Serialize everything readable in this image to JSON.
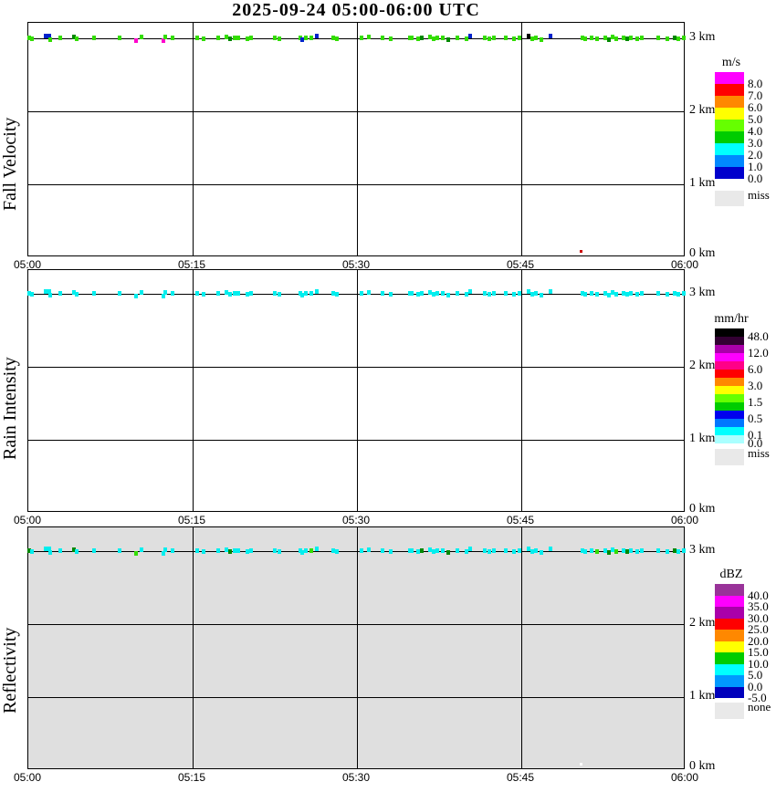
{
  "title": "2025-09-24  05:00-06:00 UTC",
  "mark_colors": {
    "g": "#33dd00",
    "G": "#008800",
    "b": "#0022cc",
    "m": "#ff00cc",
    "k": "#000000",
    "c": "#00eeee",
    "r": "#cc0000",
    "w": "#ffffff"
  },
  "chart_data": [
    {
      "type": "scatter",
      "panel": "fall-velocity",
      "ylabel": "Fall Velocity",
      "unit": "m/s",
      "x_ticks": [
        "05:00",
        "05:15",
        "05:30",
        "05:45",
        "06:00"
      ],
      "y_ticks": [
        "3 km",
        "2 km",
        "1 km",
        "0 km"
      ],
      "x_range_minutes": [
        0,
        60
      ],
      "y_range_km": [
        0,
        3.3
      ],
      "grid": true,
      "background": "#ffffff",
      "legend": {
        "title": "m/s",
        "bands": [
          "#ff00ff",
          "#ff0000",
          "#ff8800",
          "#ffff00",
          "#66ff00",
          "#00cc00",
          "#00ffff",
          "#0088ff",
          "#0000cc"
        ],
        "labels": [
          "8.0",
          "7.0",
          "6.0",
          "5.0",
          "4.0",
          "3.0",
          "2.0",
          "1.0",
          "0.0"
        ],
        "label_boundaries": [
          1,
          2,
          3,
          4,
          5,
          6,
          7,
          8,
          9
        ],
        "extra_label": "miss",
        "extra_color": "#e9e9e9"
      },
      "marks_altitude_km": 3.05,
      "marks": [
        [
          0.1,
          "g",
          0
        ],
        [
          0.3,
          "g",
          1
        ],
        [
          1.6,
          "b",
          -2
        ],
        [
          1.9,
          "b",
          -2
        ],
        [
          2.0,
          "g",
          2
        ],
        [
          2.9,
          "g",
          0
        ],
        [
          4.2,
          "G",
          -1
        ],
        [
          4.4,
          "g",
          1
        ],
        [
          6.0,
          "g",
          0
        ],
        [
          8.3,
          "g",
          0
        ],
        [
          9.8,
          "m",
          3
        ],
        [
          10.3,
          "g",
          -1
        ],
        [
          12.3,
          "m",
          3
        ],
        [
          12.5,
          "g",
          -1
        ],
        [
          13.2,
          "g",
          0
        ],
        [
          15.4,
          "g",
          0
        ],
        [
          16.0,
          "g",
          1
        ],
        [
          17.3,
          "g",
          0
        ],
        [
          18.1,
          "g",
          -1
        ],
        [
          18.4,
          "G",
          1
        ],
        [
          18.8,
          "g",
          0
        ],
        [
          19.2,
          "g",
          0
        ],
        [
          20.0,
          "g",
          1
        ],
        [
          20.3,
          "g",
          0
        ],
        [
          22.5,
          "g",
          0
        ],
        [
          22.9,
          "g",
          1
        ],
        [
          24.8,
          "g",
          0
        ],
        [
          25.0,
          "b",
          2
        ],
        [
          25.3,
          "g",
          0
        ],
        [
          25.8,
          "g",
          0
        ],
        [
          26.3,
          "b",
          -2
        ],
        [
          27.8,
          "g",
          0
        ],
        [
          28.2,
          "g",
          1
        ],
        [
          30.4,
          "g",
          0
        ],
        [
          31.1,
          "g",
          -1
        ],
        [
          32.3,
          "g",
          0
        ],
        [
          33.1,
          "g",
          1
        ],
        [
          34.8,
          "g",
          0
        ],
        [
          35.0,
          "g",
          0
        ],
        [
          35.6,
          "g",
          1
        ],
        [
          35.9,
          "G",
          0
        ],
        [
          36.7,
          "g",
          -1
        ],
        [
          37.0,
          "g",
          1
        ],
        [
          37.3,
          "g",
          0
        ],
        [
          37.8,
          "g",
          0
        ],
        [
          38.3,
          "G",
          2
        ],
        [
          39.2,
          "g",
          0
        ],
        [
          40.0,
          "g",
          1
        ],
        [
          40.3,
          "b",
          -2
        ],
        [
          41.7,
          "g",
          0
        ],
        [
          42.1,
          "g",
          1
        ],
        [
          42.5,
          "g",
          0
        ],
        [
          43.6,
          "g",
          0
        ],
        [
          44.3,
          "g",
          1
        ],
        [
          44.8,
          "g",
          0
        ],
        [
          45.7,
          "k",
          -2
        ],
        [
          46.0,
          "g",
          1
        ],
        [
          46.3,
          "g",
          0
        ],
        [
          46.8,
          "g",
          2
        ],
        [
          47.7,
          "b",
          -2
        ],
        [
          50.6,
          "g",
          0
        ],
        [
          50.8,
          "g",
          1
        ],
        [
          51.4,
          "g",
          0
        ],
        [
          51.9,
          "g",
          1
        ],
        [
          52.7,
          "g",
          0
        ],
        [
          53.0,
          "G",
          2
        ],
        [
          53.3,
          "g",
          -1
        ],
        [
          53.7,
          "g",
          1
        ],
        [
          54.3,
          "g",
          0
        ],
        [
          54.7,
          "G",
          1
        ],
        [
          55.0,
          "g",
          0
        ],
        [
          55.6,
          "g",
          1
        ],
        [
          56.0,
          "g",
          0
        ],
        [
          57.5,
          "g",
          0
        ],
        [
          58.3,
          "g",
          1
        ],
        [
          59.0,
          "G",
          0
        ],
        [
          59.3,
          "g",
          1
        ],
        [
          59.8,
          "g",
          0
        ]
      ],
      "extra_points": [
        {
          "x_minutes": 50.4,
          "y_km": 0.07,
          "color": "r"
        }
      ]
    },
    {
      "type": "scatter",
      "panel": "rain-intensity",
      "ylabel": "Rain Intensity",
      "unit": "mm/hr",
      "x_ticks": [
        "05:00",
        "05:15",
        "05:30",
        "05:45",
        "06:00"
      ],
      "y_ticks": [
        "3 km",
        "2 km",
        "1 km",
        "0 km"
      ],
      "x_range_minutes": [
        0,
        60
      ],
      "y_range_km": [
        0,
        3.3
      ],
      "grid": true,
      "background": "#ffffff",
      "legend": {
        "title": "mm/hr",
        "bands": [
          "#000000",
          "#330033",
          "#aa00aa",
          "#ff00ff",
          "#ff0088",
          "#ff0000",
          "#ff8800",
          "#ffff00",
          "#66ff00",
          "#00cc00",
          "#0000ee",
          "#0077ff",
          "#00ffff",
          "#aaffff"
        ],
        "labels": [
          "48.0",
          "12.0",
          "6.0",
          "3.0",
          "1.5",
          "0.5",
          "0.1",
          "0.0"
        ],
        "label_boundaries": [
          1,
          3,
          5,
          7,
          9,
          11,
          13,
          14
        ],
        "extra_label": "miss",
        "extra_color": "#e9e9e9"
      },
      "marks_altitude_km": 3.05,
      "marks": [
        [
          0.1,
          "c",
          0
        ],
        [
          0.3,
          "c",
          1
        ],
        [
          1.6,
          "c",
          -2
        ],
        [
          1.9,
          "c",
          -2
        ],
        [
          2.0,
          "c",
          2
        ],
        [
          2.9,
          "c",
          0
        ],
        [
          4.2,
          "c",
          -1
        ],
        [
          4.4,
          "c",
          1
        ],
        [
          6.0,
          "c",
          0
        ],
        [
          8.3,
          "c",
          0
        ],
        [
          9.8,
          "c",
          3
        ],
        [
          10.3,
          "c",
          -1
        ],
        [
          12.3,
          "c",
          3
        ],
        [
          12.5,
          "c",
          -1
        ],
        [
          13.2,
          "c",
          0
        ],
        [
          15.4,
          "c",
          0
        ],
        [
          16.0,
          "c",
          1
        ],
        [
          17.3,
          "c",
          0
        ],
        [
          18.1,
          "c",
          -1
        ],
        [
          18.4,
          "c",
          1
        ],
        [
          18.8,
          "c",
          0
        ],
        [
          19.2,
          "c",
          0
        ],
        [
          20.0,
          "c",
          1
        ],
        [
          20.3,
          "c",
          0
        ],
        [
          22.5,
          "c",
          0
        ],
        [
          22.9,
          "c",
          1
        ],
        [
          24.8,
          "c",
          0
        ],
        [
          25.0,
          "c",
          2
        ],
        [
          25.3,
          "c",
          0
        ],
        [
          25.8,
          "c",
          0
        ],
        [
          26.3,
          "c",
          -2
        ],
        [
          27.8,
          "c",
          0
        ],
        [
          28.2,
          "c",
          1
        ],
        [
          30.4,
          "c",
          0
        ],
        [
          31.1,
          "c",
          -1
        ],
        [
          32.3,
          "c",
          0
        ],
        [
          33.1,
          "c",
          1
        ],
        [
          34.8,
          "c",
          0
        ],
        [
          35.0,
          "c",
          0
        ],
        [
          35.6,
          "c",
          1
        ],
        [
          35.9,
          "c",
          0
        ],
        [
          36.7,
          "c",
          -1
        ],
        [
          37.0,
          "c",
          1
        ],
        [
          37.3,
          "c",
          0
        ],
        [
          37.8,
          "c",
          0
        ],
        [
          38.3,
          "c",
          2
        ],
        [
          39.2,
          "c",
          0
        ],
        [
          40.0,
          "c",
          1
        ],
        [
          40.3,
          "c",
          -2
        ],
        [
          41.7,
          "c",
          0
        ],
        [
          42.1,
          "c",
          1
        ],
        [
          42.5,
          "c",
          0
        ],
        [
          43.6,
          "c",
          0
        ],
        [
          44.3,
          "c",
          1
        ],
        [
          44.8,
          "c",
          0
        ],
        [
          45.7,
          "c",
          -2
        ],
        [
          46.0,
          "c",
          1
        ],
        [
          46.3,
          "c",
          0
        ],
        [
          46.8,
          "c",
          2
        ],
        [
          47.7,
          "c",
          -2
        ],
        [
          50.6,
          "c",
          0
        ],
        [
          50.8,
          "c",
          1
        ],
        [
          51.4,
          "c",
          0
        ],
        [
          51.9,
          "c",
          1
        ],
        [
          52.7,
          "c",
          0
        ],
        [
          53.0,
          "c",
          2
        ],
        [
          53.3,
          "c",
          -1
        ],
        [
          53.7,
          "c",
          1
        ],
        [
          54.3,
          "c",
          0
        ],
        [
          54.7,
          "c",
          1
        ],
        [
          55.0,
          "c",
          0
        ],
        [
          55.6,
          "c",
          1
        ],
        [
          56.0,
          "c",
          0
        ],
        [
          57.5,
          "c",
          0
        ],
        [
          58.3,
          "c",
          1
        ],
        [
          59.0,
          "c",
          0
        ],
        [
          59.3,
          "c",
          1
        ],
        [
          59.8,
          "c",
          0
        ]
      ],
      "extra_points": []
    },
    {
      "type": "scatter",
      "panel": "reflectivity",
      "ylabel": "Reflectivity",
      "unit": "dBZ",
      "x_ticks": [
        "05:00",
        "05:15",
        "05:30",
        "05:45",
        "06:00"
      ],
      "y_ticks": [
        "3 km",
        "2 km",
        "1 km",
        "0 km"
      ],
      "x_range_minutes": [
        0,
        60
      ],
      "y_range_km": [
        0,
        3.3
      ],
      "grid": true,
      "background": "#dfdfdf",
      "legend": {
        "title": "dBZ",
        "bands": [
          "#993399",
          "#ff00ff",
          "#aa00aa",
          "#ff0000",
          "#ff8800",
          "#ffff00",
          "#00cc00",
          "#00ffff",
          "#0099ff",
          "#0000bb"
        ],
        "labels": [
          "40.0",
          "35.0",
          "30.0",
          "25.0",
          "20.0",
          "15.0",
          "10.0",
          "5.0",
          "0.0",
          "-5.0"
        ],
        "label_boundaries": [
          1,
          2,
          3,
          4,
          5,
          6,
          7,
          8,
          9,
          10
        ],
        "extra_label": "none",
        "extra_color": "#e9e9e9"
      },
      "marks_altitude_km": 3.05,
      "marks": [
        [
          0.1,
          "G",
          0
        ],
        [
          0.3,
          "c",
          1
        ],
        [
          1.6,
          "c",
          -2
        ],
        [
          1.9,
          "c",
          -2
        ],
        [
          2.0,
          "c",
          2
        ],
        [
          2.9,
          "c",
          0
        ],
        [
          4.2,
          "G",
          -1
        ],
        [
          4.4,
          "c",
          1
        ],
        [
          6.0,
          "c",
          0
        ],
        [
          8.3,
          "c",
          0
        ],
        [
          9.8,
          "g",
          3
        ],
        [
          10.3,
          "c",
          -1
        ],
        [
          12.3,
          "c",
          3
        ],
        [
          12.5,
          "c",
          -1
        ],
        [
          13.2,
          "c",
          0
        ],
        [
          15.4,
          "c",
          0
        ],
        [
          16.0,
          "c",
          1
        ],
        [
          17.3,
          "c",
          0
        ],
        [
          18.1,
          "c",
          -1
        ],
        [
          18.4,
          "G",
          1
        ],
        [
          18.8,
          "c",
          0
        ],
        [
          19.2,
          "c",
          0
        ],
        [
          20.0,
          "c",
          1
        ],
        [
          20.3,
          "c",
          0
        ],
        [
          22.5,
          "c",
          0
        ],
        [
          22.9,
          "c",
          1
        ],
        [
          24.8,
          "c",
          0
        ],
        [
          25.0,
          "c",
          2
        ],
        [
          25.3,
          "c",
          0
        ],
        [
          25.8,
          "g",
          0
        ],
        [
          26.3,
          "c",
          -2
        ],
        [
          27.8,
          "c",
          0
        ],
        [
          28.2,
          "c",
          1
        ],
        [
          30.4,
          "c",
          0
        ],
        [
          31.1,
          "c",
          -1
        ],
        [
          32.3,
          "c",
          0
        ],
        [
          33.1,
          "c",
          1
        ],
        [
          34.8,
          "c",
          0
        ],
        [
          35.0,
          "c",
          0
        ],
        [
          35.6,
          "c",
          1
        ],
        [
          35.9,
          "G",
          0
        ],
        [
          36.7,
          "c",
          -1
        ],
        [
          37.0,
          "c",
          1
        ],
        [
          37.3,
          "c",
          0
        ],
        [
          37.8,
          "c",
          0
        ],
        [
          38.3,
          "G",
          2
        ],
        [
          39.2,
          "c",
          0
        ],
        [
          40.0,
          "c",
          1
        ],
        [
          40.3,
          "c",
          -2
        ],
        [
          41.7,
          "c",
          0
        ],
        [
          42.1,
          "c",
          1
        ],
        [
          42.5,
          "c",
          0
        ],
        [
          43.6,
          "c",
          0
        ],
        [
          44.3,
          "c",
          1
        ],
        [
          44.8,
          "c",
          0
        ],
        [
          45.7,
          "c",
          -2
        ],
        [
          46.0,
          "c",
          1
        ],
        [
          46.3,
          "c",
          0
        ],
        [
          46.8,
          "c",
          2
        ],
        [
          47.7,
          "c",
          -2
        ],
        [
          50.6,
          "c",
          0
        ],
        [
          50.8,
          "c",
          1
        ],
        [
          51.4,
          "c",
          0
        ],
        [
          51.9,
          "g",
          1
        ],
        [
          52.7,
          "c",
          0
        ],
        [
          53.0,
          "G",
          2
        ],
        [
          53.3,
          "c",
          -1
        ],
        [
          53.7,
          "g",
          1
        ],
        [
          54.3,
          "c",
          0
        ],
        [
          54.7,
          "G",
          1
        ],
        [
          55.0,
          "c",
          0
        ],
        [
          55.6,
          "c",
          1
        ],
        [
          56.0,
          "c",
          0
        ],
        [
          57.5,
          "c",
          0
        ],
        [
          58.3,
          "c",
          1
        ],
        [
          59.0,
          "G",
          0
        ],
        [
          59.3,
          "c",
          1
        ],
        [
          59.8,
          "c",
          0
        ]
      ],
      "extra_points": [
        {
          "x_minutes": 50.4,
          "y_km": 0.07,
          "color": "w"
        }
      ]
    }
  ]
}
